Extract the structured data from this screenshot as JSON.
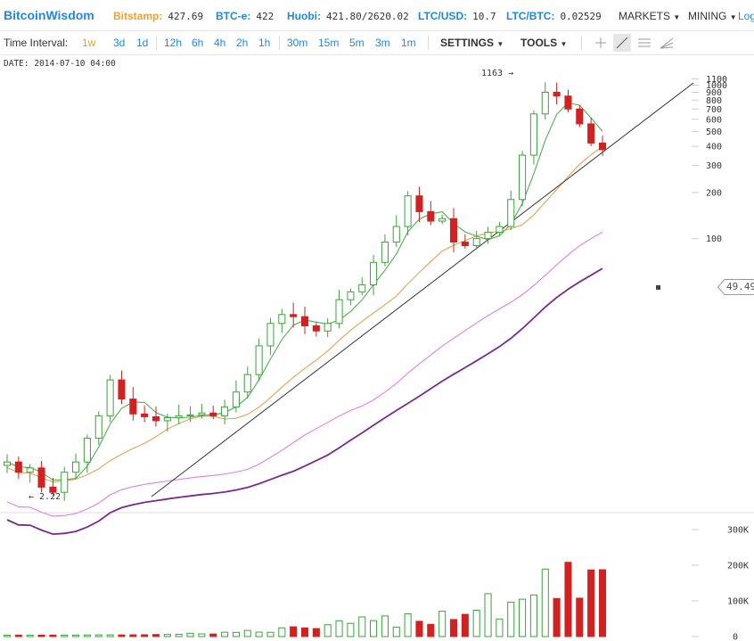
{
  "header": {
    "logo": "BitcoinWisdom",
    "tickers": [
      {
        "label": "Bitstamp:",
        "value": "427.69",
        "color": "#f0a030"
      },
      {
        "label": "BTC-e:",
        "value": "422",
        "color": "#1e88e5"
      },
      {
        "label": "Huobi:",
        "value": "421.80/2620.02",
        "color": "#1e88e5"
      },
      {
        "label": "LTC/USD:",
        "value": "10.7",
        "color": "#1e88e5"
      },
      {
        "label": "LTC/BTC:",
        "value": "0.02529",
        "color": "#1e88e5"
      }
    ],
    "menus": {
      "markets": "MARKETS",
      "mining": "MINING",
      "login": "Log"
    }
  },
  "toolbar": {
    "label": "Time Interval:",
    "intervals": [
      "1w",
      "3d",
      "1d",
      "12h",
      "6h",
      "4h",
      "2h",
      "1h",
      "30m",
      "15m",
      "5m",
      "3m",
      "1m"
    ],
    "active_interval": "1w",
    "settings": "SETTINGS",
    "tools": "TOOLS",
    "tool_icons": [
      "crosshair-icon",
      "trendline-icon",
      "horizontal-lines-icon",
      "fan-icon"
    ]
  },
  "info": {
    "date": "DATE: 2014-07-10 04:00"
  },
  "annotations": {
    "high": "1163 →",
    "low": "← 2.22"
  },
  "price_axis_labels": [
    "1100",
    "1000",
    "900",
    "800",
    "700",
    "600",
    "500",
    "400",
    "300",
    "200",
    "100"
  ],
  "volume_axis_labels": [
    "300K",
    "200K",
    "100K",
    "0"
  ],
  "price_tag": "49.49",
  "colors": {
    "up": "#3aa33a",
    "down": "#d32020",
    "ma_green": "#4caf50",
    "ma_orange": "#e8a050",
    "ma_pink": "#e080e0",
    "ma_purple": "#7a2a8a",
    "trendline": "#333333",
    "accent": "#1e88e5"
  },
  "chart_data": {
    "type": "candlestick",
    "y_scale": "log",
    "ylim": [
      2,
      1300
    ],
    "volume_ylim": [
      0,
      330000
    ],
    "series": [
      {
        "name": "price",
        "values": [
          3.5,
          3,
          3.2,
          2.4,
          2.22,
          3,
          3.5,
          5,
          7,
          12,
          9,
          7.2,
          6.9,
          6.5,
          6.8,
          7,
          7.1,
          7.3,
          7,
          8,
          10,
          13,
          20,
          28,
          32,
          31,
          27,
          25,
          28,
          40,
          45,
          50,
          70,
          95,
          120,
          190,
          150,
          130,
          135,
          95,
          90,
          100,
          110,
          120,
          180,
          350,
          650,
          900,
          850,
          700,
          560,
          420,
          380
        ]
      }
    ]
  }
}
